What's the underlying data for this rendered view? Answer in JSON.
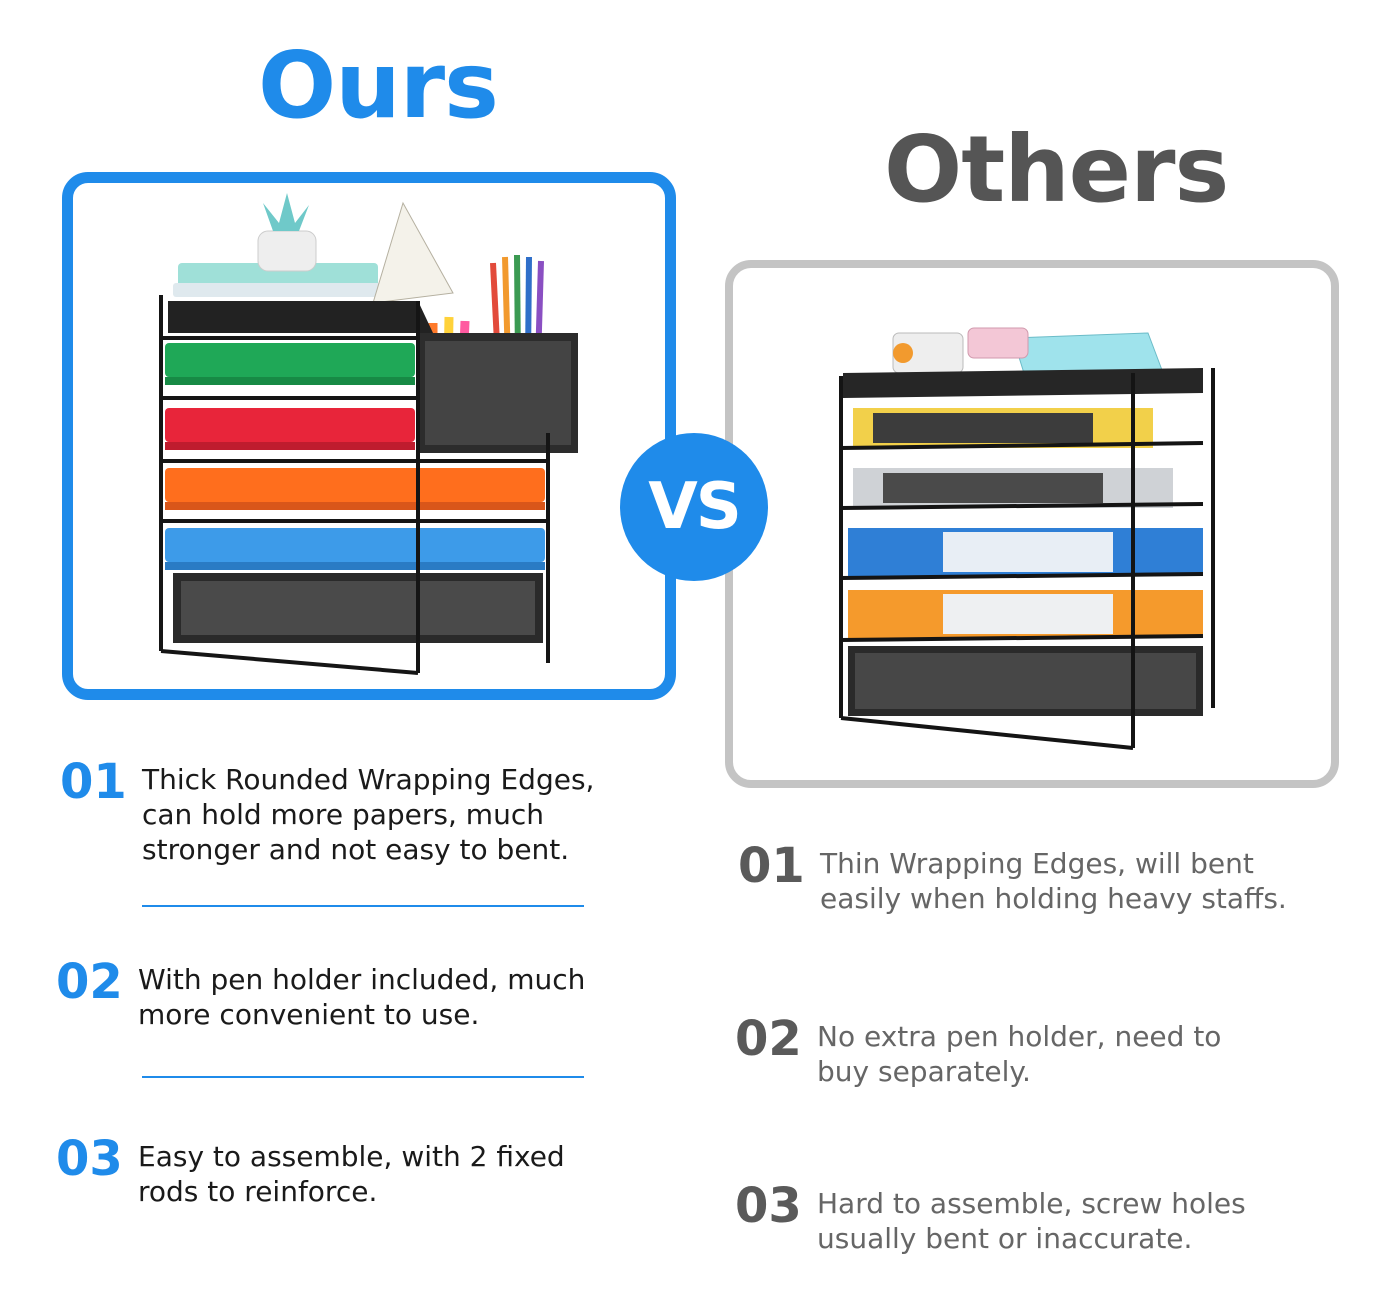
{
  "ours": {
    "title": "Ours",
    "features": [
      {
        "num": "01",
        "lines": [
          "Thick Rounded Wrapping Edges,",
          "can hold more papers, much",
          "stronger and not easy to bent."
        ]
      },
      {
        "num": "02",
        "lines": [
          "With pen holder included, much",
          "more convenient to use."
        ]
      },
      {
        "num": "03",
        "lines": [
          "Easy to assemble, with 2 fixed",
          "rods to reinforce."
        ]
      }
    ]
  },
  "others": {
    "title": "Others",
    "features": [
      {
        "num": "01",
        "lines": [
          "Thin Wrapping Edges, will bent",
          "easily when holding heavy staffs."
        ]
      },
      {
        "num": "02",
        "lines": [
          "No extra pen holder, need to",
          "buy separately."
        ]
      },
      {
        "num": "03",
        "lines": [
          "Hard to assemble, screw holes",
          "usually bent or inaccurate."
        ]
      }
    ]
  },
  "vs_label": "VS",
  "colors": {
    "accent": "#1f8bea",
    "others_text": "#666666",
    "others_frame": "#c4c4c4"
  },
  "icons": [
    "ours-organizer-photo",
    "others-organizer-photo"
  ]
}
